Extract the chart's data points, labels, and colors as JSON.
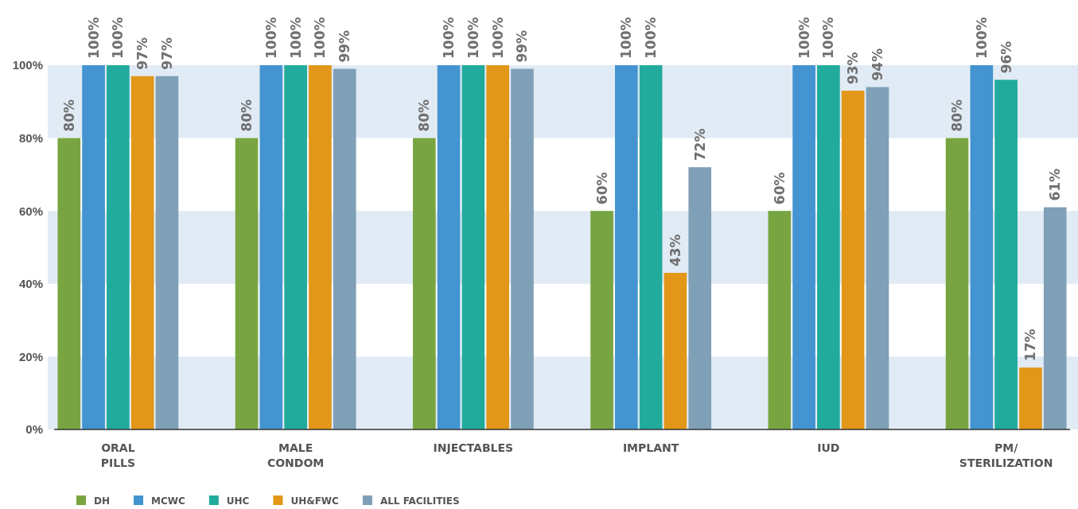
{
  "chart_data": {
    "type": "bar",
    "categories": [
      "ORAL\nPILLS",
      "MALE\nCONDOM",
      "INJECTABLES",
      "IMPLANT",
      "IUD",
      "PM/\nSTERILIZATION"
    ],
    "series": [
      {
        "name": "DH",
        "color": "#78a541",
        "values": [
          80,
          80,
          80,
          60,
          60,
          80
        ],
        "value_labels": [
          "80%",
          "80%",
          "80%",
          "60%",
          "60%",
          "80%"
        ]
      },
      {
        "name": "MCWC",
        "color": "#4394d0",
        "values": [
          100,
          100,
          100,
          100,
          100,
          100
        ],
        "value_labels": [
          "100%",
          "100%",
          "100%",
          "100%",
          "100%",
          "100%"
        ]
      },
      {
        "name": "UHC",
        "color": "#21ab9c",
        "values": [
          100,
          100,
          100,
          100,
          100,
          96
        ],
        "value_labels": [
          "100%",
          "100%",
          "100%",
          "100%",
          "100%",
          "96%"
        ]
      },
      {
        "name": "UH&FWC",
        "color": "#e29718",
        "values": [
          97,
          100,
          100,
          43,
          93,
          17
        ],
        "value_labels": [
          "97%",
          "100%",
          "100%",
          "43%",
          "93%",
          "17%"
        ]
      },
      {
        "name": "ALL FACILITIES",
        "color": "#7fa0b6",
        "values": [
          97,
          99,
          99,
          72,
          94,
          61
        ],
        "value_labels": [
          "97%",
          "99%",
          "99%",
          "72%",
          "94%",
          "61%"
        ]
      }
    ],
    "ylim": [
      0,
      100
    ],
    "yticks": [
      {
        "value": 0,
        "label": "0%"
      },
      {
        "value": 20,
        "label": "20%"
      },
      {
        "value": 40,
        "label": "40%"
      },
      {
        "value": 60,
        "label": "60%"
      },
      {
        "value": 80,
        "label": "80%"
      },
      {
        "value": 100,
        "label": "100%"
      }
    ],
    "bands": [
      {
        "axis": "y",
        "from": 0,
        "to": 20,
        "color": "#e1ebf5"
      },
      {
        "axis": "y",
        "from": 40,
        "to": 60,
        "color": "#e1ebf5"
      },
      {
        "axis": "y",
        "from": 80,
        "to": 100,
        "color": "#e1ebf5"
      }
    ],
    "legend": "bottom"
  }
}
